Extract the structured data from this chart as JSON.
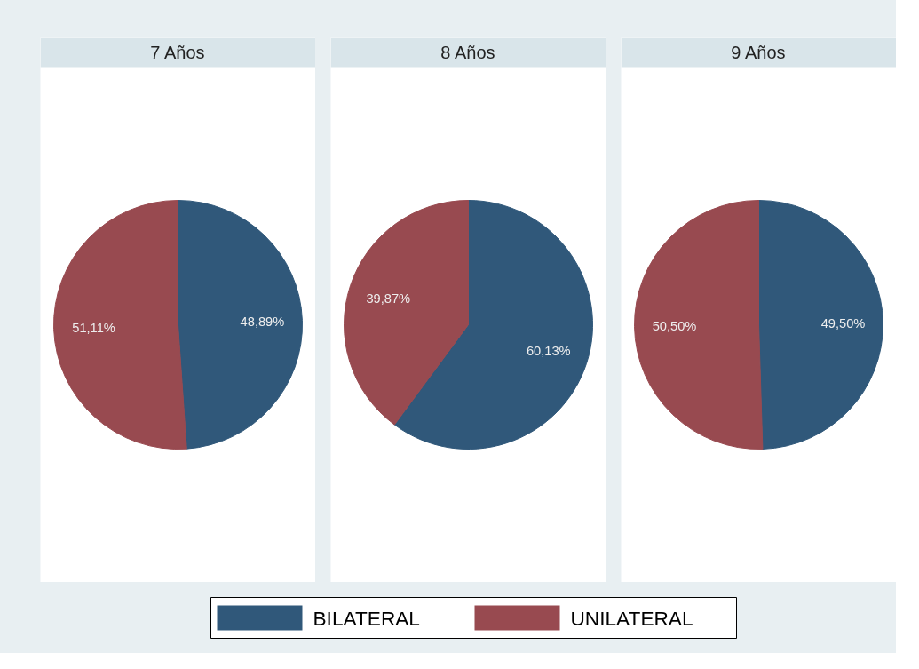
{
  "chart_data": [
    {
      "type": "pie",
      "title": "7 Años",
      "categories": [
        "BILATERAL",
        "UNILATERAL"
      ],
      "values": [
        48.89,
        51.11
      ],
      "colors": [
        "#30587a",
        "#984a50"
      ],
      "value_labels": [
        "48,89%",
        "51,11%"
      ],
      "legend": "bottom"
    },
    {
      "type": "pie",
      "title": "8 Años",
      "values": [
        60.13,
        39.87
      ],
      "colors": [
        "#30587a",
        "#984a50"
      ],
      "value_labels": [
        "60,13%",
        "39,87%"
      ]
    },
    {
      "type": "pie",
      "title": "9 Años",
      "values": [
        49.5,
        50.5
      ],
      "colors": [
        "#30587a",
        "#984a50"
      ],
      "value_labels": [
        "49,50%",
        "50,50%"
      ]
    }
  ]
}
